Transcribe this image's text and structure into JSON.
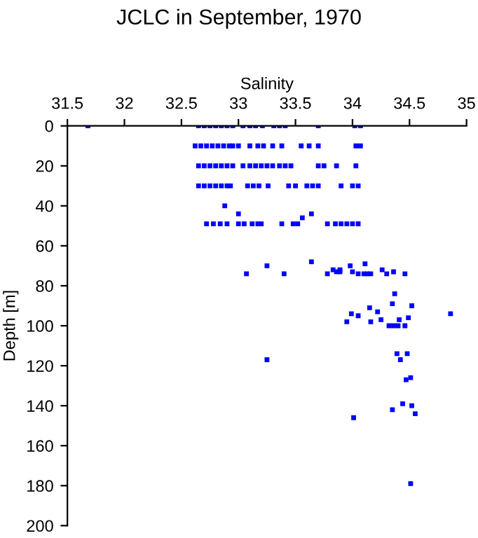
{
  "chart_data": {
    "type": "scatter",
    "title": "JCLC in September, 1970",
    "xlabel": "Salinity",
    "ylabel": "Depth [m]",
    "series": [
      {
        "color": "#0000ff",
        "x": [
          31.68,
          32.65,
          32.7,
          32.75,
          32.8,
          32.85,
          32.9,
          32.95,
          33.04,
          33.1,
          33.15,
          33.21,
          33.31,
          33.36,
          33.41,
          33.7,
          34.02,
          34.07,
          32.62,
          32.67,
          32.72,
          32.77,
          32.82,
          32.87,
          32.92,
          32.95,
          33.0,
          33.1,
          33.17,
          33.22,
          33.3,
          33.38,
          33.55,
          33.62,
          33.7,
          34.03,
          34.07,
          32.65,
          32.7,
          32.75,
          32.8,
          32.85,
          32.9,
          32.95,
          33.04,
          33.1,
          33.15,
          33.2,
          33.25,
          33.3,
          33.36,
          33.41,
          33.46,
          33.7,
          33.75,
          33.86,
          34.03,
          32.65,
          32.7,
          32.75,
          32.8,
          32.85,
          32.9,
          32.93,
          33.08,
          33.13,
          33.18,
          33.26,
          33.44,
          33.5,
          33.6,
          33.65,
          33.7,
          33.9,
          34.0,
          34.05,
          32.88,
          33.0,
          33.56,
          33.64,
          32.72,
          32.78,
          32.84,
          32.9,
          33.0,
          33.05,
          33.12,
          33.17,
          33.2,
          33.38,
          33.48,
          33.52,
          33.78,
          33.85,
          33.9,
          33.95,
          34.0,
          34.05,
          33.07,
          33.25,
          33.4,
          33.64,
          33.78,
          33.83,
          33.86,
          33.89,
          33.89,
          33.98,
          34.0,
          34.05,
          34.1,
          34.13,
          34.11,
          34.16,
          34.26,
          34.3,
          34.36,
          34.46,
          34.37,
          34.35,
          34.52,
          34.15,
          33.99,
          34.05,
          34.22,
          34.86,
          34.49,
          33.95,
          34.16,
          34.25,
          34.32,
          34.36,
          34.4,
          34.46,
          34.41,
          33.25,
          34.39,
          34.48,
          34.42,
          34.51,
          34.47,
          34.44,
          34.01,
          34.35,
          34.52,
          34.55,
          34.51
        ],
        "values": [
          0,
          0,
          0,
          0,
          0,
          0,
          0,
          0,
          0,
          0,
          0,
          0,
          0,
          0,
          0,
          0,
          0,
          0,
          10,
          10,
          10,
          10,
          10,
          10,
          10,
          10,
          10,
          10,
          10,
          10,
          10,
          10,
          10,
          10,
          10,
          10,
          10,
          20,
          20,
          20,
          20,
          20,
          20,
          20,
          20,
          20,
          20,
          20,
          20,
          20,
          20,
          20,
          20,
          20,
          20,
          20,
          20,
          30,
          30,
          30,
          30,
          30,
          30,
          30,
          30,
          30,
          30,
          30,
          30,
          30,
          30,
          30,
          30,
          30,
          30,
          30,
          40,
          44,
          46,
          44,
          49,
          49,
          49,
          49,
          49,
          49,
          49,
          49,
          49,
          49,
          49,
          49,
          49,
          49,
          49,
          49,
          49,
          49,
          74,
          70,
          74,
          68,
          74,
          72,
          73,
          72,
          73,
          70,
          73,
          74,
          74,
          74,
          69,
          74,
          72,
          74,
          73,
          74,
          84,
          89,
          90,
          91,
          94,
          95,
          93,
          94,
          96,
          98,
          98,
          97,
          100,
          100,
          100,
          100,
          97,
          117,
          114,
          114,
          117,
          126,
          127,
          139,
          146,
          142,
          140,
          144,
          179
        ]
      }
    ],
    "xlim": [
      31.5,
      35
    ],
    "xticks": [
      31.5,
      32,
      32.5,
      33,
      33.5,
      34,
      34.5,
      35
    ],
    "ylim": [
      200,
      0
    ],
    "yticks": [
      0,
      20,
      40,
      60,
      80,
      100,
      120,
      140,
      160,
      180,
      200
    ],
    "marker": "square",
    "grid": false,
    "legend": false
  }
}
